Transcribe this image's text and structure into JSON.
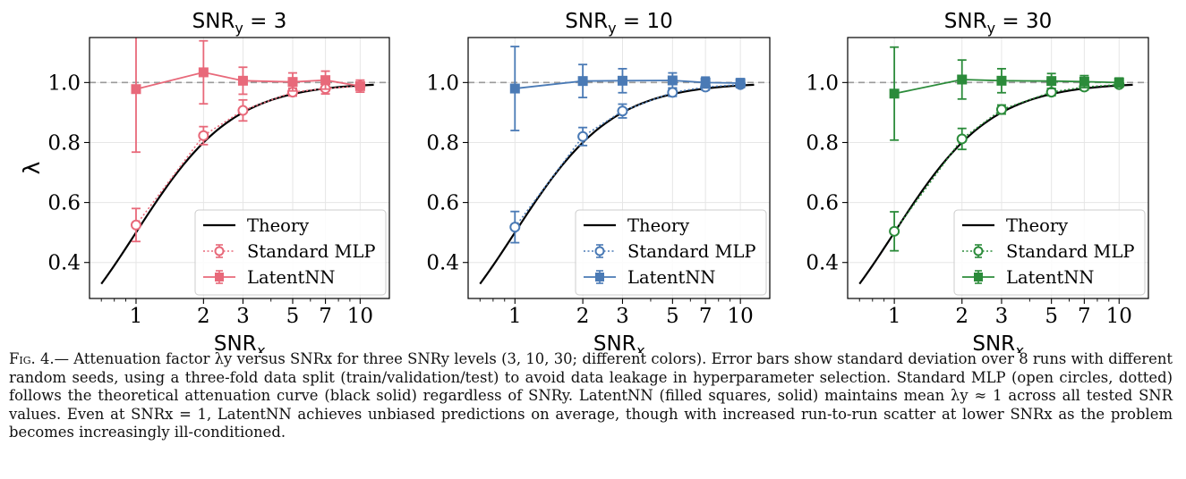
{
  "chart_data": [
    {
      "type": "line",
      "title": "SNR_y = 3",
      "title_main": "SNR",
      "title_sub": "y",
      "title_rest": " = 3",
      "xlabel_main": "SNR",
      "xlabel_sub": "x",
      "ylabel": "λ",
      "xscale": "log",
      "xlim": [
        0.62,
        13.5
      ],
      "ylim": [
        0.28,
        1.15
      ],
      "xticks": [
        1,
        2,
        3,
        5,
        7,
        10
      ],
      "xtick_labels": [
        "1",
        "2",
        "3",
        "5",
        "7",
        "10"
      ],
      "yticks": [
        0.4,
        0.6,
        0.8,
        1.0
      ],
      "ytick_labels": [
        "0.4",
        "0.6",
        "0.8",
        "1.0"
      ],
      "reference_line": 1.0,
      "grid": true,
      "legend_position": "lower-right",
      "color": "#e8697a",
      "series": [
        {
          "name": "Theory",
          "kind": "theory",
          "color": "#000000",
          "x_from": 0.7,
          "x_to": 11.5
        },
        {
          "name": "Standard MLP",
          "kind": "standard",
          "x": [
            1,
            2,
            3,
            5,
            7,
            10
          ],
          "y": [
            0.525,
            0.823,
            0.907,
            0.968,
            0.98,
            0.988
          ],
          "err": [
            0.055,
            0.03,
            0.035,
            0.013,
            0.018,
            0.01
          ]
        },
        {
          "name": "LatentNN",
          "kind": "latent",
          "x": [
            1,
            2,
            3,
            5,
            7,
            10
          ],
          "y": [
            0.978,
            1.034,
            1.006,
            1.002,
            1.008,
            0.988
          ],
          "err": [
            0.21,
            0.105,
            0.045,
            0.03,
            0.03,
            0.02
          ]
        }
      ]
    },
    {
      "type": "line",
      "title": "SNR_y = 10",
      "title_main": "SNR",
      "title_sub": "y",
      "title_rest": " = 10",
      "xlabel_main": "SNR",
      "xlabel_sub": "x",
      "ylabel": "",
      "xscale": "log",
      "xlim": [
        0.62,
        13.5
      ],
      "ylim": [
        0.28,
        1.15
      ],
      "xticks": [
        1,
        2,
        3,
        5,
        7,
        10
      ],
      "xtick_labels": [
        "1",
        "2",
        "3",
        "5",
        "7",
        "10"
      ],
      "yticks": [
        0.4,
        0.6,
        0.8,
        1.0
      ],
      "ytick_labels": [
        "0.4",
        "0.6",
        "0.8",
        "1.0"
      ],
      "reference_line": 1.0,
      "grid": true,
      "legend_position": "lower-right",
      "color": "#4a7ab5",
      "series": [
        {
          "name": "Theory",
          "kind": "theory",
          "color": "#000000",
          "x_from": 0.7,
          "x_to": 11.5
        },
        {
          "name": "Standard MLP",
          "kind": "standard",
          "x": [
            1,
            2,
            3,
            5,
            7,
            10
          ],
          "y": [
            0.518,
            0.82,
            0.905,
            0.967,
            0.985,
            0.993
          ],
          "err": [
            0.052,
            0.03,
            0.023,
            0.013,
            0.01,
            0.008
          ]
        },
        {
          "name": "LatentNN",
          "kind": "latent",
          "x": [
            1,
            2,
            3,
            5,
            7,
            10
          ],
          "y": [
            0.98,
            1.005,
            1.006,
            1.007,
            1.0,
            0.998
          ],
          "err": [
            0.14,
            0.055,
            0.04,
            0.025,
            0.018,
            0.015
          ]
        }
      ]
    },
    {
      "type": "line",
      "title": "SNR_y = 30",
      "title_main": "SNR",
      "title_sub": "y",
      "title_rest": " = 30",
      "xlabel_main": "SNR",
      "xlabel_sub": "x",
      "ylabel": "",
      "xscale": "log",
      "xlim": [
        0.62,
        13.5
      ],
      "ylim": [
        0.28,
        1.15
      ],
      "xticks": [
        1,
        2,
        3,
        5,
        7,
        10
      ],
      "xtick_labels": [
        "1",
        "2",
        "3",
        "5",
        "7",
        "10"
      ],
      "yticks": [
        0.4,
        0.6,
        0.8,
        1.0
      ],
      "ytick_labels": [
        "0.4",
        "0.6",
        "0.8",
        "1.0"
      ],
      "reference_line": 1.0,
      "grid": true,
      "legend_position": "lower-right",
      "color": "#2b8b3a",
      "series": [
        {
          "name": "Theory",
          "kind": "theory",
          "color": "#000000",
          "x_from": 0.7,
          "x_to": 11.5
        },
        {
          "name": "Standard MLP",
          "kind": "standard",
          "x": [
            1,
            2,
            3,
            5,
            7,
            10
          ],
          "y": [
            0.504,
            0.812,
            0.91,
            0.968,
            0.985,
            0.993
          ],
          "err": [
            0.065,
            0.035,
            0.015,
            0.012,
            0.01,
            0.008
          ]
        },
        {
          "name": "LatentNN",
          "kind": "latent",
          "x": [
            1,
            2,
            3,
            5,
            7,
            10
          ],
          "y": [
            0.963,
            1.01,
            1.006,
            1.005,
            1.003,
            1.0
          ],
          "err": [
            0.155,
            0.065,
            0.04,
            0.025,
            0.02,
            0.015
          ]
        }
      ]
    }
  ],
  "caption": {
    "label": "Fig. 4.",
    "text": "— Attenuation factor λy versus SNRx for three SNRy levels (3, 10, 30; different colors). Error bars show standard deviation over 8 runs with different random seeds, using a three-fold data split (train/validation/test) to avoid data leakage in hyperparameter selection. Standard MLP (open circles, dotted) follows the theoretical attenuation curve (black solid) regardless of SNRy. LatentNN (filled squares, solid) maintains mean λy ≈ 1 across all tested SNR values. Even at SNRx = 1, LatentNN achieves unbiased predictions on average, though with increased run-to-run scatter at lower SNRx as the problem becomes increasingly ill-conditioned."
  }
}
